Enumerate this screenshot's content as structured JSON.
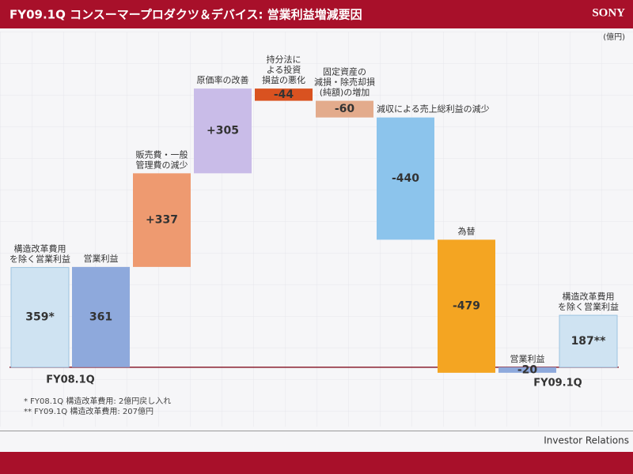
{
  "header": {
    "title": "FY09.1Q コンスーマープロダクツ＆デバイス: 営業利益増減要因",
    "brand": "SONY"
  },
  "chart_data": {
    "type": "waterfall",
    "unit": "(億円)",
    "categories": [
      "構造改革費用\nを除く営業利益",
      "営業利益",
      "販売費・一般\n管理費の減少",
      "原価率の改善",
      "持分法に\nよる投資\n損益の悪化",
      "固定資産の\n減損・除売却損\n(純額)の増加",
      "減収による売上総利益の減少",
      "為替",
      "営業利益",
      "構造改革費用\nを除く営業利益"
    ],
    "values": [
      359,
      361,
      337,
      305,
      -44,
      -60,
      -440,
      -479,
      -20,
      187
    ],
    "value_labels": [
      "359*",
      "361",
      "+337",
      "+305",
      "-44",
      "-60",
      "-440",
      "-479",
      "-20",
      "187**"
    ],
    "measure": [
      "absolute",
      "absolute",
      "relative",
      "relative",
      "relative",
      "relative",
      "relative",
      "relative",
      "absolute",
      "absolute"
    ],
    "colors": [
      "#cfe3f2",
      "#8ea9dc",
      "#ee9a70",
      "#c9bce8",
      "#d95220",
      "#e3ab8c",
      "#8cc4ec",
      "#f4a522",
      "#8ea9dc",
      "#cfe3f2"
    ],
    "ylim": [
      -100,
      1100
    ],
    "period_labels": [
      "FY08.1Q",
      "FY09.1Q"
    ]
  },
  "footnotes": [
    "*   FY08.1Q 構造改革費用: 2億円戻し入れ",
    "**  FY09.1Q 構造改革費用: 207億円"
  ],
  "footer": "Investor Relations"
}
